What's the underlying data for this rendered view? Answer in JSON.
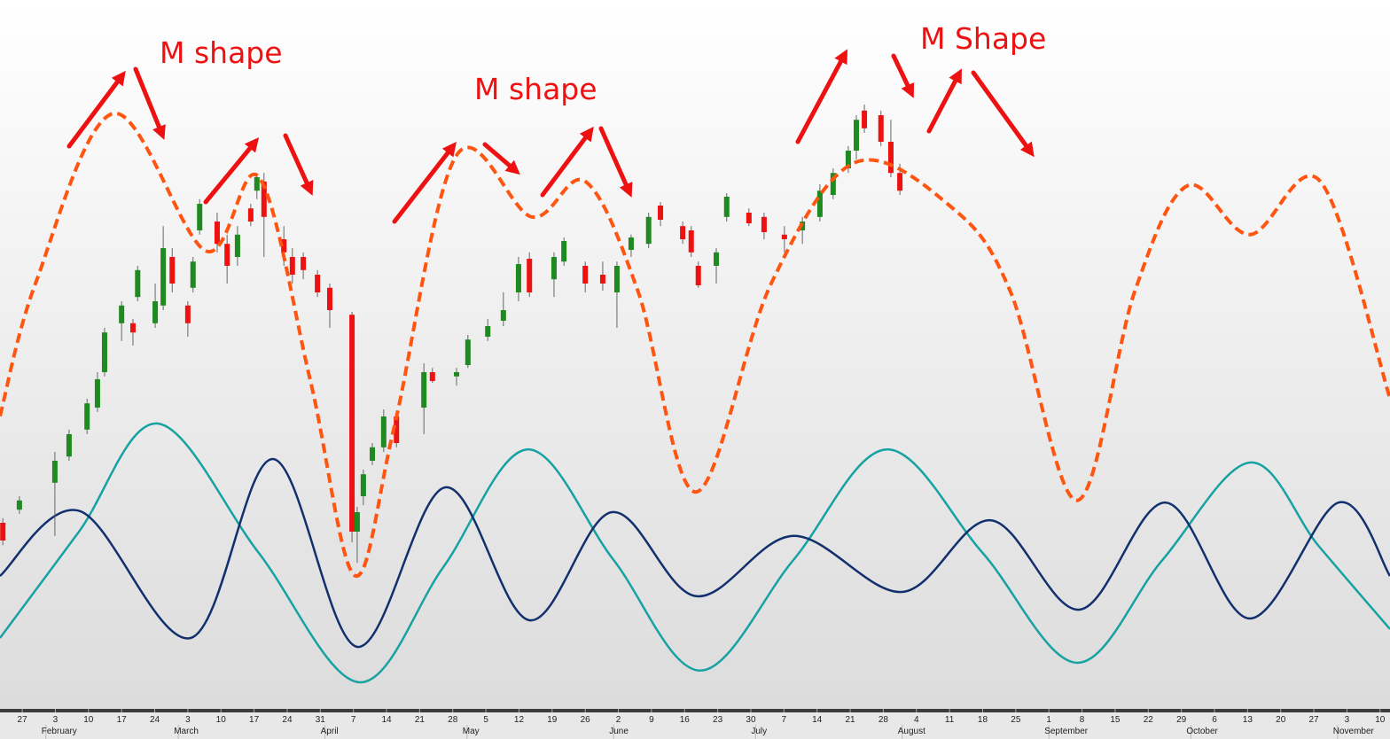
{
  "chart_data": {
    "type": "candlestick",
    "xlim": [
      -4.7,
      289.1
    ],
    "ylim": [
      0,
      100
    ],
    "up_color": "#1f8a1f",
    "down_color": "#ee1111",
    "candles": {
      "x": [
        -4.1,
        -0.6,
        6.9,
        9.9,
        13.7,
        15.9,
        17.4,
        21,
        23.4,
        24.4,
        28.1,
        29.8,
        31.7,
        35,
        36.1,
        37.5,
        41.2,
        43.3,
        45.5,
        48.3,
        49.6,
        51.1,
        55.3,
        57.1,
        59.4,
        62.4,
        65,
        69.7,
        70.8,
        72.1,
        74,
        76.4,
        79.1,
        84.9,
        86.7,
        91.8,
        94.2,
        98.4,
        101.7,
        104.9,
        107.2,
        112.4,
        114.5,
        119,
        122.7,
        125.7,
        128.7,
        132.4,
        134.9,
        139.6,
        141.4,
        142.9,
        146.7,
        148.9,
        153.6,
        156.8,
        161.1,
        164.9,
        168.6,
        171.4,
        174.6,
        176.3,
        178,
        181.5,
        183.6,
        185.5
      ],
      "open": [
        26.25,
        28.1,
        31.9,
        35.6,
        39.4,
        42.5,
        47.5,
        54.4,
        54.4,
        58.1,
        54.4,
        56.9,
        63.75,
        56.9,
        59.4,
        67.5,
        68.75,
        65.6,
        63.75,
        70.6,
        73.1,
        74.4,
        66.25,
        63.75,
        63.75,
        61.25,
        59.4,
        55.6,
        25,
        30,
        35,
        36.9,
        41.25,
        42.5,
        47.5,
        46.9,
        48.5,
        52.5,
        54.75,
        58.75,
        63.5,
        60.6,
        63.1,
        62.5,
        61.25,
        58.75,
        64.75,
        65.6,
        71,
        68.1,
        67.5,
        62.5,
        62.5,
        69.4,
        70,
        69.4,
        66.9,
        67.5,
        69.4,
        72.5,
        76.25,
        78.75,
        84.4,
        83.75,
        80,
        75.6
      ],
      "high": [
        26.9,
        30,
        36.25,
        39.4,
        43.75,
        47.5,
        53.75,
        57.5,
        55,
        62.5,
        60,
        68.1,
        65,
        57.5,
        63.75,
        71.9,
        70,
        66.9,
        68.1,
        71.25,
        75.6,
        75.6,
        68.1,
        65,
        64.4,
        61.9,
        60,
        56,
        28.5,
        33.75,
        37.5,
        42.25,
        41.9,
        48.75,
        48.1,
        48.1,
        52.75,
        55,
        58.75,
        63.75,
        64.4,
        64.4,
        66.5,
        63.1,
        63.1,
        63.1,
        66.9,
        70,
        71.5,
        68.75,
        68.1,
        63.1,
        65,
        72.75,
        70.6,
        70,
        68.1,
        69.4,
        74,
        76.25,
        79.4,
        83.75,
        85.25,
        84.4,
        83.1,
        76.9
      ],
      "low": [
        23.1,
        27.5,
        24.4,
        35,
        38.75,
        41.9,
        46.9,
        51.9,
        51.25,
        57.5,
        53.75,
        56.25,
        58.75,
        52.5,
        58.75,
        66.9,
        64.4,
        60,
        62.5,
        68.1,
        71.9,
        63.75,
        62.5,
        60,
        60.6,
        58.1,
        53.75,
        23.5,
        20.6,
        28.75,
        34.4,
        36.25,
        36.9,
        38.75,
        46,
        45.6,
        48.1,
        51.9,
        54,
        57.5,
        58.1,
        58.1,
        62.5,
        58.75,
        59,
        53.75,
        63.75,
        65,
        68.1,
        65.6,
        63.75,
        59.4,
        60,
        68.75,
        68.1,
        66.25,
        64.4,
        65.6,
        68.75,
        71.9,
        75.6,
        77.5,
        81.25,
        79.4,
        75,
        72.5
      ],
      "close": [
        23.75,
        29.4,
        35,
        38.75,
        43.1,
        46.5,
        53.1,
        56.9,
        53.1,
        61.9,
        57.5,
        65,
        60,
        54.4,
        63.1,
        71.25,
        65.6,
        62.5,
        66.9,
        68.75,
        75,
        69.4,
        64.4,
        61.25,
        61.9,
        58.75,
        56.25,
        25,
        27.75,
        33.1,
        36.9,
        41.25,
        37.5,
        47.5,
        46.25,
        47.5,
        52.1,
        54,
        56.25,
        62.75,
        58.75,
        63.75,
        66,
        60,
        60,
        62.5,
        66.5,
        69.4,
        69,
        66.25,
        64.4,
        59.75,
        64.4,
        72.25,
        68.5,
        67.25,
        66.25,
        68.75,
        73.1,
        75.6,
        78.75,
        83.1,
        81.9,
        80,
        75.6,
        73.1
      ]
    },
    "series": [
      {
        "color": "#17a2a2",
        "dashed": false,
        "x": [
          -4.7,
          12,
          28.7,
          50,
          71.2,
          89,
          106.8,
          125,
          143.3,
          163,
          182.7,
          203,
          222.9,
          241,
          259.5,
          274,
          289.1
        ],
        "values": [
          10,
          25,
          40.25,
          22,
          3.75,
          20,
          36.6,
          21,
          5.4,
          21,
          36.6,
          22,
          6.5,
          21,
          34.75,
          23,
          11.25
        ]
      },
      {
        "color": "#12306e",
        "dashed": false,
        "x": [
          -4.7,
          12.2,
          35.6,
          53,
          70.8,
          89.4,
          107.2,
          124.6,
          142.4,
          163,
          186,
          204.8,
          223.5,
          241.7,
          259.5,
          278.2,
          289.1
        ],
        "values": [
          18.75,
          27.9,
          10,
          35.25,
          8.75,
          31.25,
          12.5,
          27.75,
          15.9,
          24.4,
          16.5,
          26.6,
          14,
          29.1,
          12.75,
          29.1,
          18.75
        ]
      },
      {
        "color": "#ff5511",
        "dashed": true,
        "x": [
          -4.7,
          2.8,
          19.3,
          38.8,
          50,
          60.9,
          70.3,
          78.7,
          91.8,
          107.7,
          119,
          130.2,
          142.4,
          158.3,
          176.1,
          196.7,
          208.9,
          222.9,
          235.1,
          246.3,
          259.5,
          274.4,
          289.1
        ],
        "values": [
          41.3,
          60,
          84,
          64.6,
          75,
          46.3,
          18.8,
          40,
          78.1,
          69.4,
          74.4,
          58.8,
          30.6,
          60,
          77.1,
          70.6,
          58.8,
          29.4,
          58.8,
          73.8,
          66.9,
          74.4,
          43.8
        ]
      }
    ],
    "annotations": [
      "M shape",
      "M shape",
      "M Shape"
    ],
    "xticks": [
      {
        "value": 0,
        "label": "27"
      },
      {
        "value": 7,
        "label": "3"
      },
      {
        "value": 14,
        "label": "10"
      },
      {
        "value": 21,
        "label": "17"
      },
      {
        "value": 28,
        "label": "24"
      },
      {
        "value": 35,
        "label": "3"
      },
      {
        "value": 42,
        "label": "10"
      },
      {
        "value": 49,
        "label": "17"
      },
      {
        "value": 56,
        "label": "24"
      },
      {
        "value": 63,
        "label": "31"
      },
      {
        "value": 70,
        "label": "7"
      },
      {
        "value": 77,
        "label": "14"
      },
      {
        "value": 84,
        "label": "21"
      },
      {
        "value": 91,
        "label": "28"
      },
      {
        "value": 98,
        "label": "5"
      },
      {
        "value": 105,
        "label": "12"
      },
      {
        "value": 112,
        "label": "19"
      },
      {
        "value": 119,
        "label": "26"
      },
      {
        "value": 126,
        "label": "2"
      },
      {
        "value": 133,
        "label": "9"
      },
      {
        "value": 140,
        "label": "16"
      },
      {
        "value": 147,
        "label": "23"
      },
      {
        "value": 154,
        "label": "30"
      },
      {
        "value": 161,
        "label": "7"
      },
      {
        "value": 168,
        "label": "14"
      },
      {
        "value": 175,
        "label": "21"
      },
      {
        "value": 182,
        "label": "28"
      },
      {
        "value": 189,
        "label": "4"
      },
      {
        "value": 196,
        "label": "11"
      },
      {
        "value": 203,
        "label": "18"
      },
      {
        "value": 210,
        "label": "25"
      },
      {
        "value": 217,
        "label": "1"
      },
      {
        "value": 224,
        "label": "8"
      },
      {
        "value": 231,
        "label": "15"
      },
      {
        "value": 238,
        "label": "22"
      },
      {
        "value": 245,
        "label": "29"
      },
      {
        "value": 252,
        "label": "6"
      },
      {
        "value": 259,
        "label": "13"
      },
      {
        "value": 266,
        "label": "20"
      },
      {
        "value": 273,
        "label": "27"
      },
      {
        "value": 280,
        "label": "3"
      },
      {
        "value": 287,
        "label": "10"
      }
    ],
    "month_labels": [
      {
        "value": 5,
        "label": "February"
      },
      {
        "value": 33,
        "label": "March"
      },
      {
        "value": 64,
        "label": "April"
      },
      {
        "value": 94,
        "label": "May"
      },
      {
        "value": 125,
        "label": "June"
      },
      {
        "value": 155,
        "label": "July"
      },
      {
        "value": 186,
        "label": "August"
      },
      {
        "value": 217,
        "label": "September"
      },
      {
        "value": 247,
        "label": "October"
      },
      {
        "value": 278,
        "label": "November"
      }
    ]
  }
}
